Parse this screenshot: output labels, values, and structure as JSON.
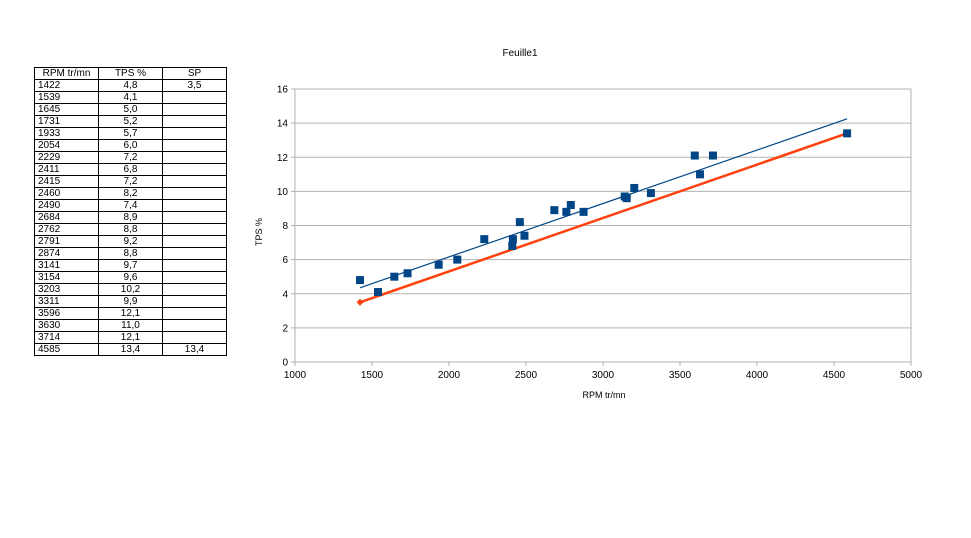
{
  "table": {
    "headers": [
      "RPM tr/mn",
      "TPS %",
      "SP"
    ],
    "rows": [
      [
        "1422",
        "4,8",
        "3,5"
      ],
      [
        "1539",
        "4,1",
        ""
      ],
      [
        "1645",
        "5,0",
        ""
      ],
      [
        "1731",
        "5,2",
        ""
      ],
      [
        "1933",
        "5,7",
        ""
      ],
      [
        "2054",
        "6,0",
        ""
      ],
      [
        "2229",
        "7,2",
        ""
      ],
      [
        "2411",
        "6,8",
        ""
      ],
      [
        "2415",
        "7,2",
        ""
      ],
      [
        "2460",
        "8,2",
        ""
      ],
      [
        "2490",
        "7,4",
        ""
      ],
      [
        "2684",
        "8,9",
        ""
      ],
      [
        "2762",
        "8,8",
        ""
      ],
      [
        "2791",
        "9,2",
        ""
      ],
      [
        "2874",
        "8,8",
        ""
      ],
      [
        "3141",
        "9,7",
        ""
      ],
      [
        "3154",
        "9,6",
        ""
      ],
      [
        "3203",
        "10,2",
        ""
      ],
      [
        "3311",
        "9,9",
        ""
      ],
      [
        "3596",
        "12,1",
        ""
      ],
      [
        "3630",
        "11,0",
        ""
      ],
      [
        "3714",
        "12,1",
        ""
      ],
      [
        "4585",
        "13,4",
        "13,4"
      ]
    ]
  },
  "chart_data": {
    "type": "scatter",
    "title": "Feuille1",
    "xlabel": "RPM tr/mn",
    "ylabel": "TPS %",
    "xlim": [
      1000,
      5000
    ],
    "ylim": [
      0,
      16
    ],
    "xticks": [
      1000,
      1500,
      2000,
      2500,
      3000,
      3500,
      4000,
      4500,
      5000
    ],
    "yticks": [
      0,
      2,
      4,
      6,
      8,
      10,
      12,
      14,
      16
    ],
    "grid": true,
    "legend": "none",
    "series": [
      {
        "type": "scatter",
        "color": "#004586",
        "marker": "square",
        "x": [
          1422,
          1539,
          1645,
          1731,
          1933,
          2054,
          2229,
          2411,
          2415,
          2460,
          2490,
          2684,
          2762,
          2791,
          2874,
          3141,
          3154,
          3203,
          3311,
          3596,
          3630,
          3714,
          4585
        ],
        "y": [
          4.8,
          4.1,
          5.0,
          5.2,
          5.7,
          6.0,
          7.2,
          6.8,
          7.2,
          8.2,
          7.4,
          8.9,
          8.8,
          9.2,
          8.8,
          9.7,
          9.6,
          10.2,
          9.9,
          12.1,
          11.0,
          12.1,
          13.4
        ]
      },
      {
        "type": "line",
        "color": "#ff420e",
        "marker": "diamond",
        "x": [
          1422,
          4585
        ],
        "y": [
          3.5,
          13.4
        ]
      },
      {
        "type": "trendline",
        "color": "#004586",
        "x": [
          1422,
          4585
        ],
        "y": [
          4.35,
          14.25
        ]
      }
    ]
  }
}
